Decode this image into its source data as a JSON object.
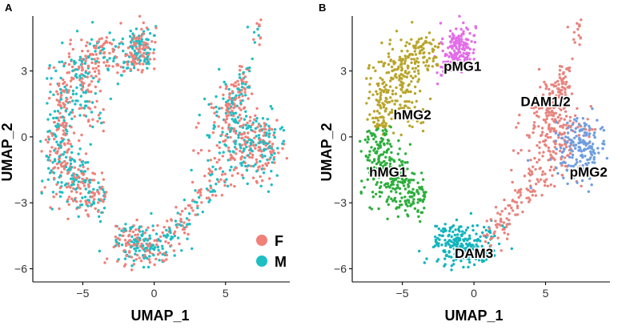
{
  "chart_data": [
    {
      "panel": "A",
      "type": "scatter",
      "xlabel": "UMAP_1",
      "ylabel": "UMAP_2",
      "xticks": [
        -5,
        0,
        5
      ],
      "yticks": [
        3,
        0,
        -3,
        -6
      ],
      "xlim": [
        -8.5,
        9.5
      ],
      "ylim": [
        -6.6,
        5.5
      ],
      "legend_position": "bottom-right",
      "series": [
        {
          "name": "F",
          "color": "#F08079"
        },
        {
          "name": "M",
          "color": "#1FBEC3"
        }
      ]
    },
    {
      "panel": "B",
      "type": "scatter",
      "xlabel": "UMAP_1",
      "ylabel": "UMAP_2",
      "xticks": [
        -5,
        0,
        5
      ],
      "yticks": [
        3,
        0,
        -3,
        -6
      ],
      "xlim": [
        -8.5,
        9.5
      ],
      "ylim": [
        -6.6,
        5.5
      ],
      "clusters": [
        {
          "name": "pMG1",
          "color": "#E36CE8",
          "label_at": [
            -0.8,
            3.0
          ]
        },
        {
          "name": "hMG2",
          "color": "#B8A52A",
          "label_at": [
            -4.3,
            0.8
          ]
        },
        {
          "name": "DAM1/2",
          "color": "#E8837E",
          "label_at": [
            5.0,
            1.4
          ]
        },
        {
          "name": "hMG1",
          "color": "#2DAE3C",
          "label_at": [
            -6.0,
            -1.8
          ]
        },
        {
          "name": "pMG2",
          "color": "#6F9EE0",
          "label_at": [
            8.0,
            -1.8
          ]
        },
        {
          "name": "DAM3",
          "color": "#12B4BD",
          "label_at": [
            0.0,
            -5.5
          ]
        }
      ]
    }
  ]
}
